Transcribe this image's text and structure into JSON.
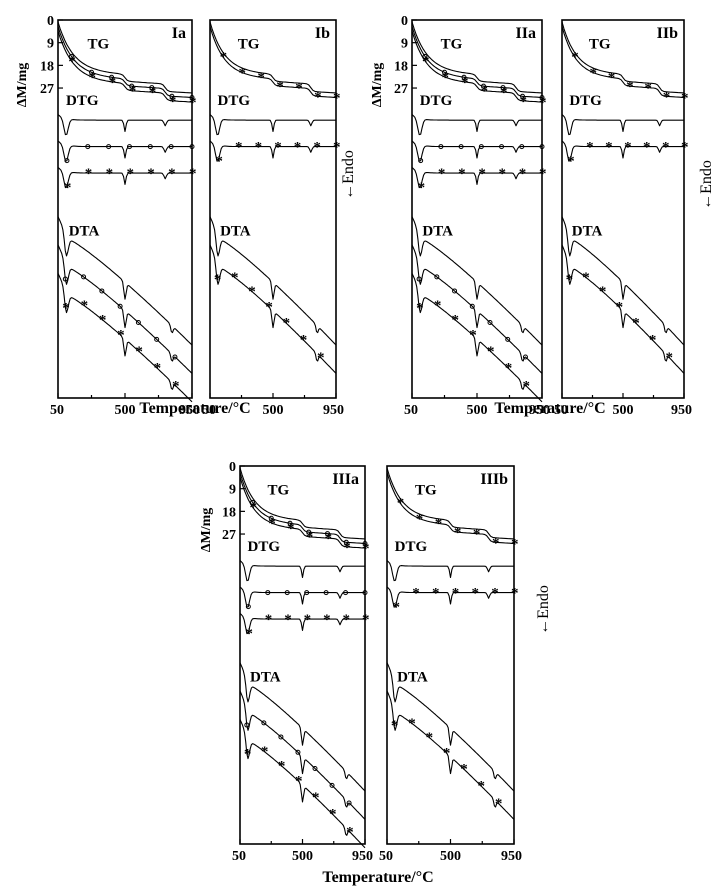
{
  "figure": {
    "x_axis_title": "Temperature/",
    "x_axis_unit": "°C",
    "y_axis_title": "ΔM/mg",
    "endo_label": "←Endo"
  },
  "chart_data": [
    {
      "panel": "Ia",
      "type": "line",
      "y_ticks": [
        "0",
        "9",
        "18",
        "27"
      ],
      "x_ticks": [
        "50",
        "500",
        "950"
      ],
      "curve_labels": [
        "TG",
        "DTG",
        "DTA"
      ],
      "xlim": [
        50,
        950
      ],
      "ylim": [
        0,
        27
      ],
      "series": [
        {
          "marker": "none"
        },
        {
          "marker": "o"
        },
        {
          "marker": "*"
        }
      ]
    },
    {
      "panel": "Ib",
      "type": "line",
      "x_ticks": [
        "50",
        "500",
        "950"
      ],
      "curve_labels": [
        "TG",
        "DTG",
        "DTA"
      ],
      "xlim": [
        50,
        950
      ],
      "ylim": [
        0,
        27
      ],
      "series": [
        {
          "marker": "none"
        },
        {
          "marker": "*"
        }
      ]
    },
    {
      "panel": "IIa",
      "type": "line",
      "y_ticks": [
        "0",
        "9",
        "18",
        "27"
      ],
      "x_ticks": [
        "50",
        "500",
        "950"
      ],
      "curve_labels": [
        "TG",
        "DTG",
        "DTA"
      ],
      "xlim": [
        50,
        950
      ],
      "ylim": [
        0,
        27
      ],
      "series": [
        {
          "marker": "none"
        },
        {
          "marker": "o"
        },
        {
          "marker": "*"
        }
      ]
    },
    {
      "panel": "IIb",
      "type": "line",
      "x_ticks": [
        "50",
        "500",
        "950"
      ],
      "curve_labels": [
        "TG",
        "DTG",
        "DTA"
      ],
      "xlim": [
        50,
        950
      ],
      "ylim": [
        0,
        27
      ],
      "series": [
        {
          "marker": "none"
        },
        {
          "marker": "*"
        }
      ]
    },
    {
      "panel": "IIIa",
      "type": "line",
      "y_ticks": [
        "0",
        "9",
        "18",
        "27"
      ],
      "x_ticks": [
        "50",
        "500",
        "950"
      ],
      "curve_labels": [
        "TG",
        "DTG",
        "DTA"
      ],
      "xlim": [
        50,
        950
      ],
      "ylim": [
        0,
        27
      ],
      "series": [
        {
          "marker": "none"
        },
        {
          "marker": "o"
        },
        {
          "marker": "*"
        }
      ]
    },
    {
      "panel": "IIIb",
      "type": "line",
      "x_ticks": [
        "50",
        "500",
        "950"
      ],
      "curve_labels": [
        "TG",
        "DTG",
        "DTA"
      ],
      "xlim": [
        50,
        950
      ],
      "ylim": [
        0,
        27
      ],
      "series": [
        {
          "marker": "none"
        },
        {
          "marker": "*"
        }
      ]
    }
  ]
}
